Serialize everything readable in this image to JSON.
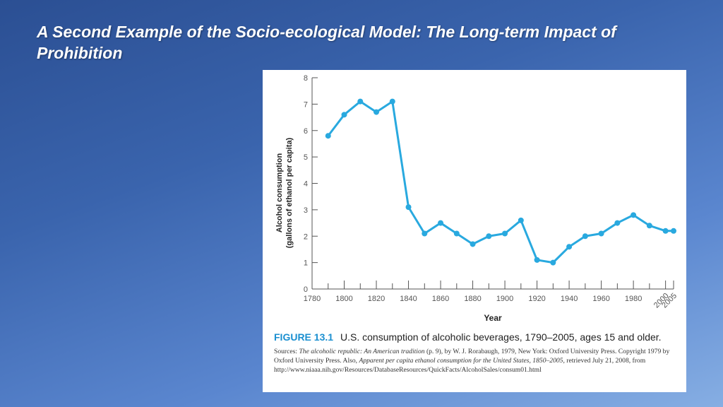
{
  "slide": {
    "title": "A Second Example of the Socio-ecological Model: The Long-term Impact of Prohibition"
  },
  "figure": {
    "label": "FIGURE 13.1",
    "caption": "U.S. consumption of alcoholic beverages, 1790–2005, ages 15 and older.",
    "sources": {
      "s1": "Sources: ",
      "s2": "The alcoholic republic: An American tradition",
      "s3": " (p. 9), by W. J. Rorabaugh, 1979, New York: Oxford University Press. Copyright 1979 by Oxford University Press. Also, ",
      "s4": "Apparent per capita ethanol consumption for the United States, 1850–2005",
      "s5": ", retrieved July 21, 2008, from http://www.niaaa.nih.gov/Resources/DatabaseResources/QuickFacts/AlcoholSales/consum01.html"
    }
  },
  "colors": {
    "line": "#29a9df",
    "axis": "#555555",
    "figure_label": "#1a8fd0"
  },
  "chart_data": {
    "type": "line",
    "title": "",
    "xlabel": "Year",
    "ylabel_line1": "Alcohol consumption",
    "ylabel_line2": "(gallons of ethanol per capita)",
    "xlim": [
      1780,
      2005
    ],
    "ylim": [
      0,
      8
    ],
    "x_ticks": [
      1780,
      1800,
      1820,
      1840,
      1860,
      1880,
      1900,
      1920,
      1940,
      1960,
      1980,
      2000,
      2005
    ],
    "x_tick_labels": [
      "1780",
      "1800",
      "1820",
      "1840",
      "1860",
      "1880",
      "1900",
      "1920",
      "1940",
      "1960",
      "1980",
      "2000",
      "2005"
    ],
    "x_minor_ticks": [
      1790,
      1810,
      1830,
      1850,
      1870,
      1890,
      1910,
      1930,
      1950,
      1970,
      1990
    ],
    "y_ticks": [
      0,
      1,
      2,
      3,
      4,
      5,
      6,
      7,
      8
    ],
    "grid": false,
    "series": [
      {
        "x": [
          1790,
          1800,
          1810,
          1820,
          1830,
          1840,
          1850,
          1860,
          1870,
          1880,
          1890,
          1900,
          1910,
          1920,
          1930,
          1940,
          1950,
          1960,
          1970,
          1980,
          1990,
          2000,
          2005
        ],
        "values": [
          5.8,
          6.6,
          7.1,
          6.7,
          7.1,
          3.1,
          2.1,
          2.5,
          2.1,
          1.7,
          2.0,
          2.1,
          2.6,
          1.1,
          1.0,
          1.6,
          2.0,
          2.1,
          2.5,
          2.8,
          2.4,
          2.2,
          2.2
        ]
      }
    ]
  }
}
